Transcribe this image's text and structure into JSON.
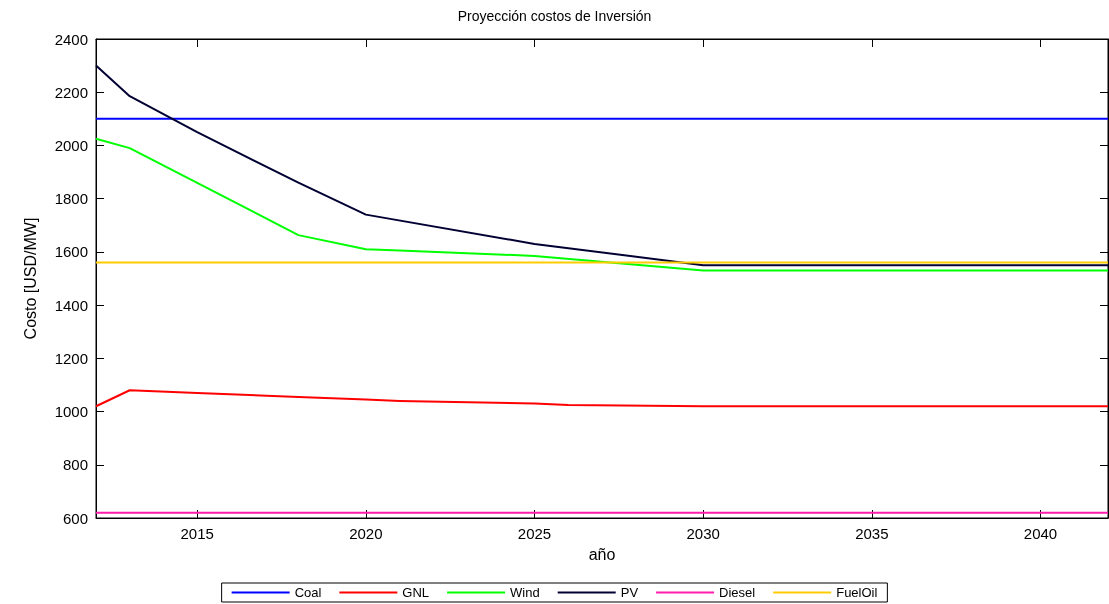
{
  "chart_data": {
    "type": "line",
    "title": "Proyección costos de Inversión",
    "xlabel": "año",
    "ylabel": "Costo [USD/MW]",
    "xlim": [
      2012,
      2042
    ],
    "xticks": [
      2015,
      2020,
      2025,
      2030,
      2035,
      2040
    ],
    "ylim": [
      600,
      2400
    ],
    "yticks": [
      600,
      800,
      1000,
      1200,
      1400,
      1600,
      1800,
      2000,
      2200,
      2400
    ],
    "grid": false,
    "legend": "bottom",
    "marker": "none",
    "line_style": "solid",
    "series": [
      {
        "name": "Coal",
        "color": "#0000ff",
        "x": [
          2012,
          2042
        ],
        "values": [
          2100,
          2100
        ]
      },
      {
        "name": "GNL",
        "color": "#ff0000",
        "x": [
          2012,
          2013,
          2015,
          2018,
          2020,
          2021,
          2025,
          2026,
          2030,
          2042
        ],
        "values": [
          1020,
          1080,
          1070,
          1055,
          1045,
          1040,
          1030,
          1025,
          1020,
          1020
        ]
      },
      {
        "name": "Wind",
        "color": "#00ff00",
        "x": [
          2012,
          2013,
          2018,
          2020,
          2021,
          2025,
          2030,
          2042
        ],
        "values": [
          2025,
          1990,
          1663,
          1610,
          1605,
          1585,
          1530,
          1530
        ]
      },
      {
        "name": "PV",
        "color": "#000033",
        "x": [
          2012,
          2013,
          2015,
          2018,
          2020,
          2025,
          2030,
          2042
        ],
        "values": [
          2300,
          2185,
          2050,
          1860,
          1740,
          1630,
          1550,
          1550
        ]
      },
      {
        "name": "Diesel",
        "color": "#ff1cae",
        "x": [
          2012,
          2042
        ],
        "values": [
          620,
          620
        ]
      },
      {
        "name": "FuelOil",
        "color": "#ffcc00",
        "x": [
          2012,
          2042
        ],
        "values": [
          1560,
          1560
        ]
      }
    ]
  }
}
